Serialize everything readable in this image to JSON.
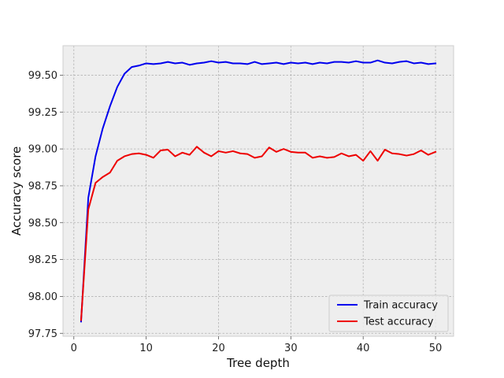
{
  "chart_data": {
    "type": "line",
    "title": "",
    "xlabel": "Tree depth",
    "ylabel": "Accuracy score",
    "xlim": [
      -1.5,
      52.5
    ],
    "ylim": [
      97.73,
      99.7
    ],
    "xticks": [
      0,
      10,
      20,
      30,
      40,
      50
    ],
    "yticks": [
      97.75,
      98.0,
      98.25,
      98.5,
      98.75,
      99.0,
      99.25,
      99.5
    ],
    "ytick_labels": [
      "97.75",
      "98.00",
      "98.25",
      "98.50",
      "98.75",
      "99.00",
      "99.25",
      "99.50"
    ],
    "grid": true,
    "legend_position": "bottom-right",
    "x": [
      1,
      2,
      3,
      4,
      5,
      6,
      7,
      8,
      9,
      10,
      11,
      12,
      13,
      14,
      15,
      16,
      17,
      18,
      19,
      20,
      21,
      22,
      23,
      24,
      25,
      26,
      27,
      28,
      29,
      30,
      31,
      32,
      33,
      34,
      35,
      36,
      37,
      38,
      39,
      40,
      41,
      42,
      43,
      44,
      45,
      46,
      47,
      48,
      49,
      50
    ],
    "series": [
      {
        "name": "Train accuracy",
        "color": "#0000ee",
        "values": [
          97.83,
          98.67,
          98.95,
          99.14,
          99.29,
          99.42,
          99.51,
          99.555,
          99.565,
          99.58,
          99.575,
          99.58,
          99.59,
          99.58,
          99.585,
          99.57,
          99.58,
          99.585,
          99.595,
          99.585,
          99.59,
          99.58,
          99.58,
          99.575,
          99.59,
          99.575,
          99.58,
          99.585,
          99.575,
          99.585,
          99.58,
          99.585,
          99.575,
          99.585,
          99.58,
          99.59,
          99.59,
          99.585,
          99.595,
          99.585,
          99.585,
          99.6,
          99.585,
          99.58,
          99.59,
          99.595,
          99.58,
          99.585,
          99.575,
          99.58
        ]
      },
      {
        "name": "Test accuracy",
        "color": "#ee0000",
        "values": [
          97.84,
          98.59,
          98.77,
          98.81,
          98.84,
          98.92,
          98.95,
          98.965,
          98.97,
          98.96,
          98.94,
          98.99,
          98.995,
          98.95,
          98.975,
          98.96,
          99.015,
          98.975,
          98.95,
          98.985,
          98.975,
          98.985,
          98.97,
          98.965,
          98.94,
          98.95,
          99.01,
          98.98,
          99.0,
          98.98,
          98.975,
          98.975,
          98.94,
          98.95,
          98.94,
          98.945,
          98.97,
          98.95,
          98.96,
          98.92,
          98.985,
          98.92,
          98.995,
          98.97,
          98.965,
          98.955,
          98.965,
          98.99,
          98.96,
          98.98
        ]
      }
    ]
  }
}
